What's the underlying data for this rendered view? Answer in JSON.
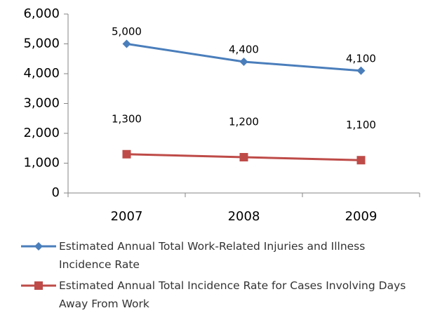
{
  "chart_data": {
    "type": "line",
    "categories": [
      "2007",
      "2008",
      "2009"
    ],
    "series": [
      {
        "name": "Estimated Annual Total Work-Related Injuries and Illness Incidence Rate",
        "color": "#4a7ebb",
        "marker": "diamond",
        "values": [
          5000,
          4400,
          4100
        ],
        "value_labels": [
          "5,000",
          "4,400",
          "4,100"
        ]
      },
      {
        "name": "Estimated Annual Total Incidence Rate for Cases Involving Days Away From Work",
        "color": "#be4b48",
        "marker": "square",
        "values": [
          1300,
          1200,
          1100
        ],
        "value_labels": [
          "1,300",
          "1,200",
          "1,100"
        ]
      }
    ],
    "ylim": [
      0,
      6000
    ],
    "yticks": [
      {
        "value": 0,
        "label": "0"
      },
      {
        "value": 1000,
        "label": "1,000"
      },
      {
        "value": 2000,
        "label": "2,000"
      },
      {
        "value": 3000,
        "label": "3,000"
      },
      {
        "value": 4000,
        "label": "4,000"
      },
      {
        "value": 5000,
        "label": "5,000"
      },
      {
        "value": 6000,
        "label": "6,000"
      }
    ],
    "grid": false,
    "legend": "bottom"
  }
}
